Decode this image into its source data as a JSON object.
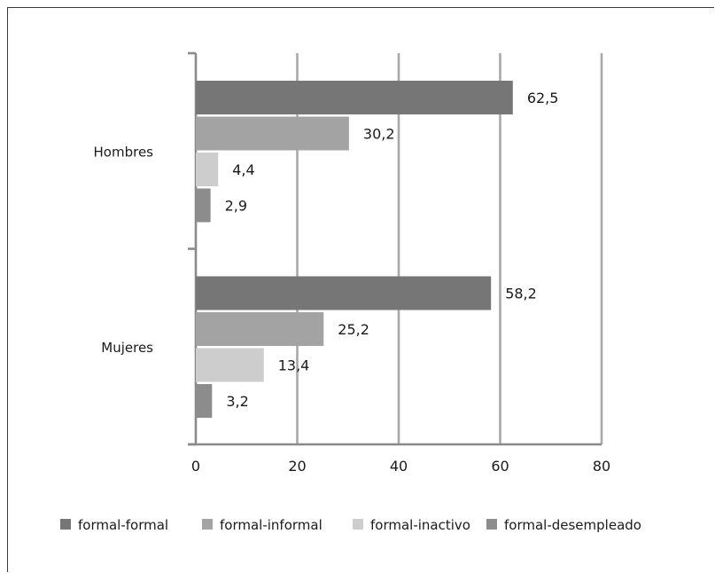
{
  "chart_data": {
    "type": "bar",
    "orientation": "horizontal",
    "categories": [
      "Hombres",
      "Mujeres"
    ],
    "series": [
      {
        "name": "formal-formal",
        "color": "#767676",
        "values": [
          62.5,
          58.2
        ],
        "labels": [
          "62,5",
          "58,2"
        ]
      },
      {
        "name": "formal-informal",
        "color": "#a3a3a3",
        "values": [
          30.2,
          25.2
        ],
        "labels": [
          "30,2",
          "25,2"
        ]
      },
      {
        "name": "formal-inactivo",
        "color": "#cdcdcd",
        "values": [
          4.4,
          13.4
        ],
        "labels": [
          "4,4",
          "13,4"
        ]
      },
      {
        "name": "formal-desempleado",
        "color": "#8c8c8c",
        "values": [
          2.9,
          3.2
        ],
        "labels": [
          "2,9",
          "3,2"
        ]
      }
    ],
    "xlim": [
      0,
      80
    ],
    "xticks": [
      0,
      20,
      40,
      60,
      80
    ],
    "grid": true,
    "legend_position": "bottom",
    "title": "",
    "xlabel": "",
    "ylabel": ""
  }
}
